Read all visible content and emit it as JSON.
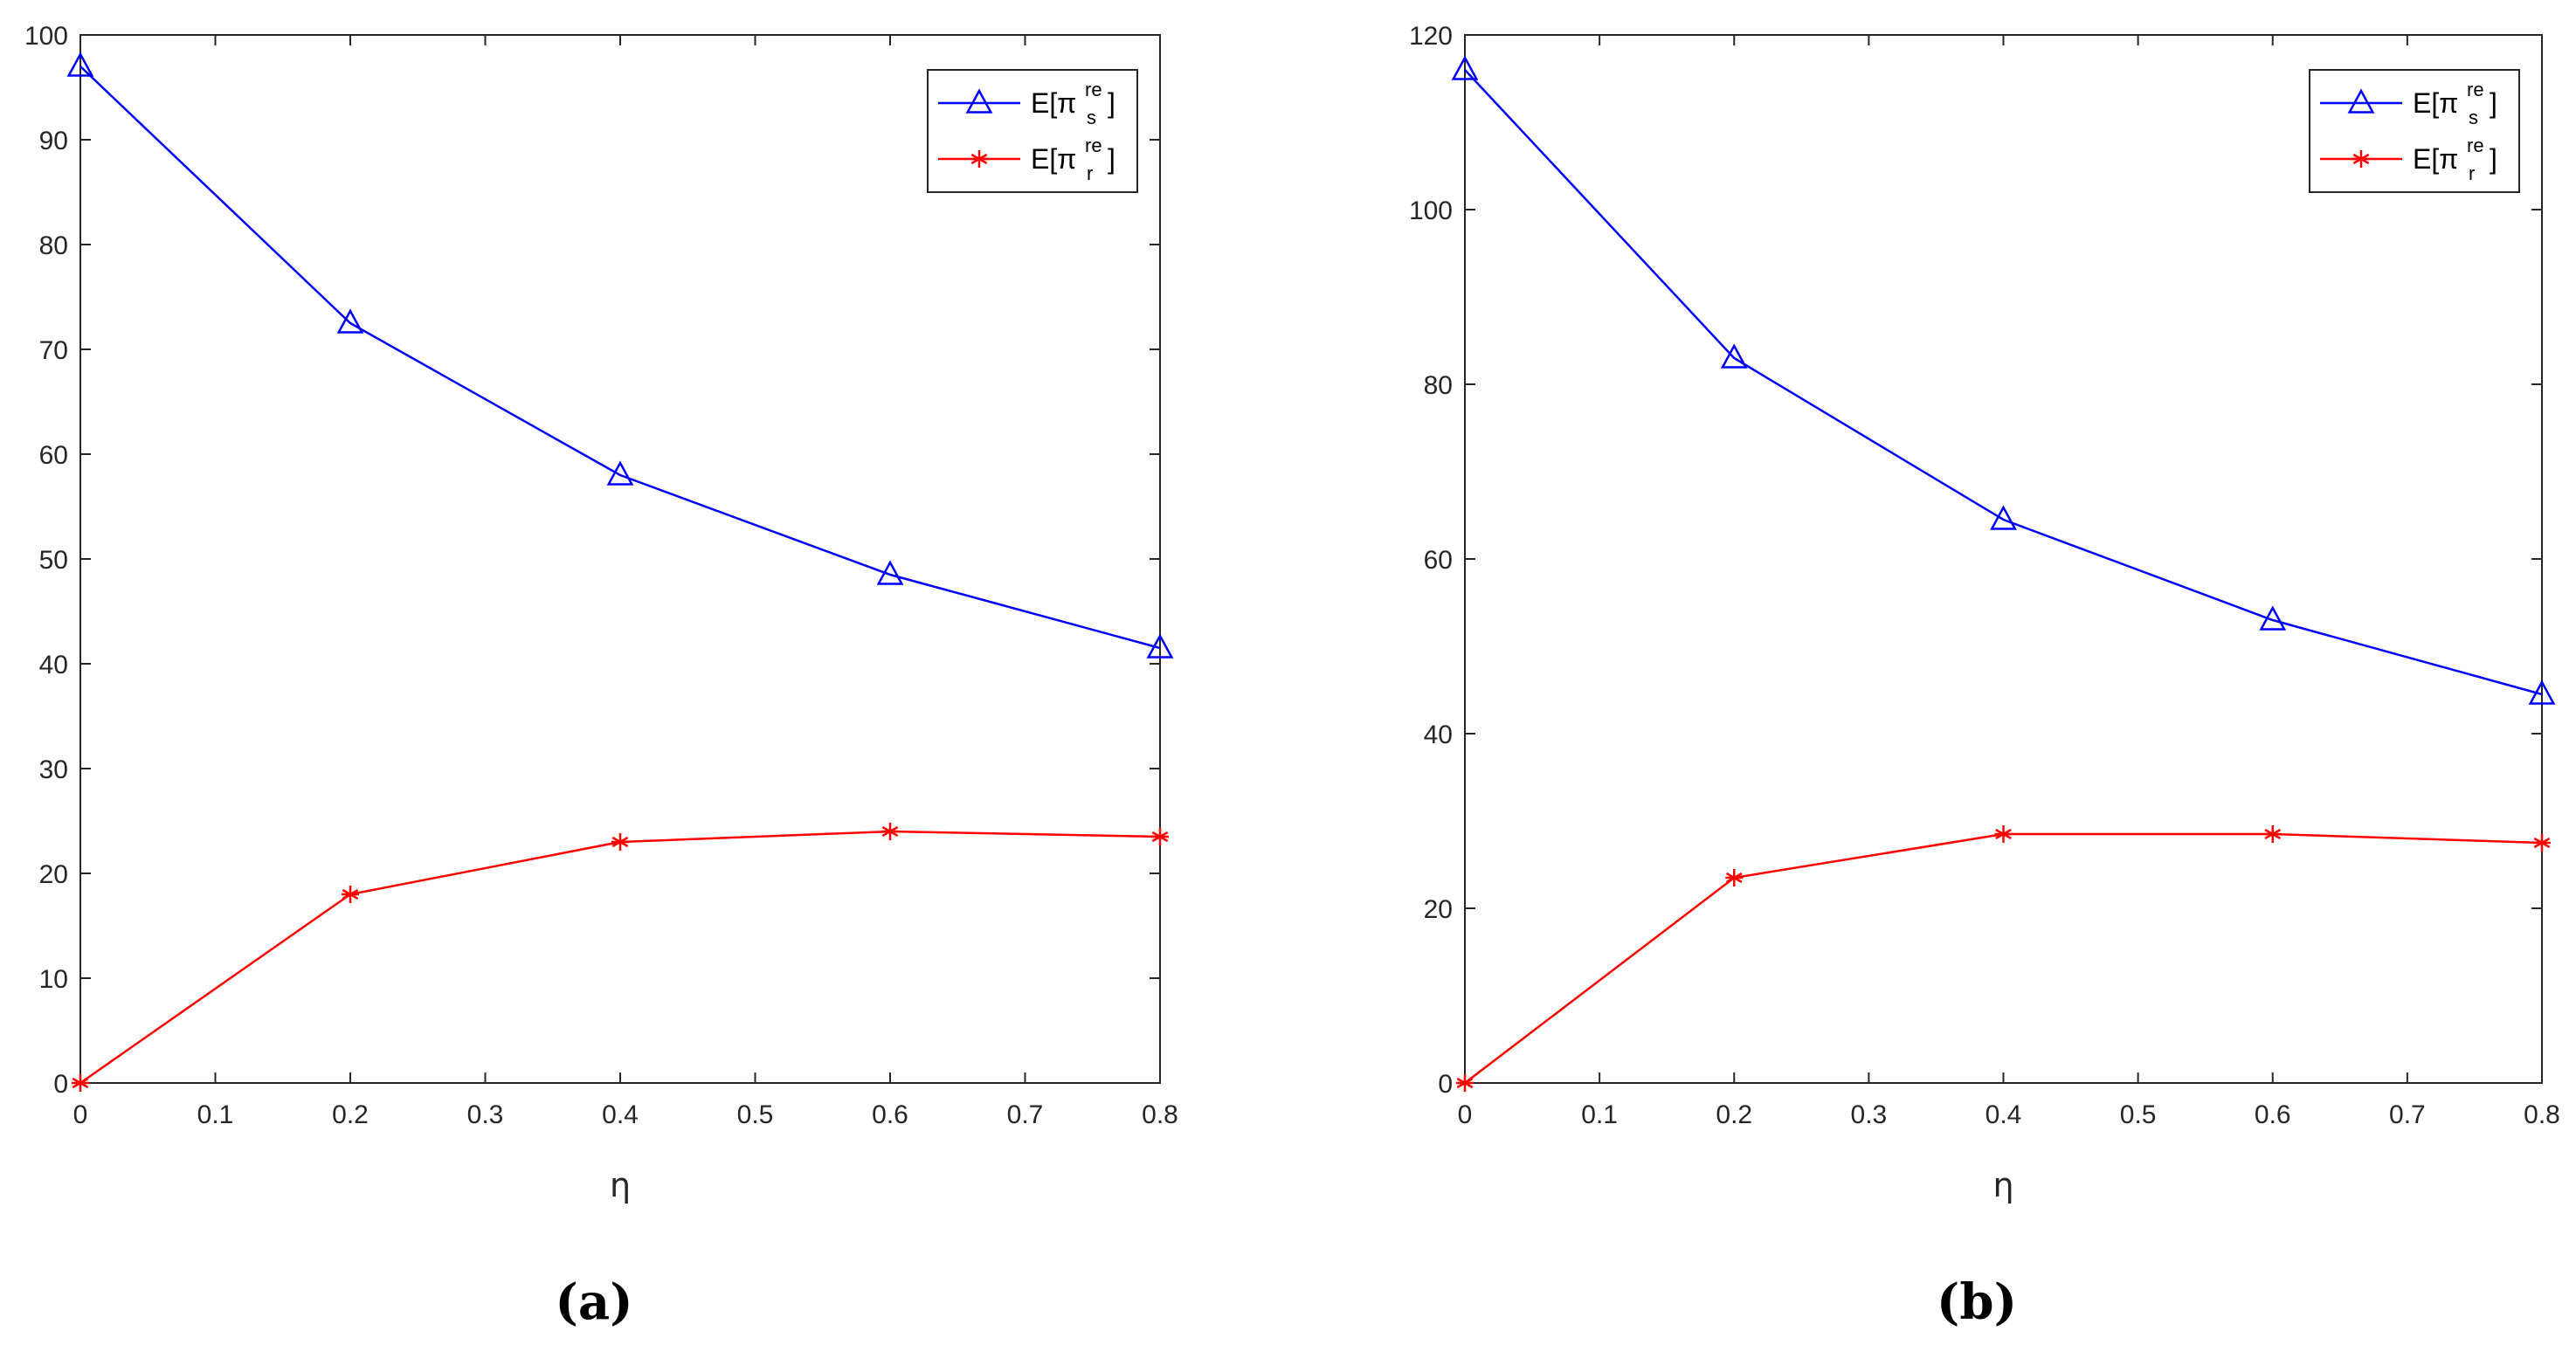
{
  "chart_data": [
    {
      "type": "line",
      "caption": "(a)",
      "xlabel": "η",
      "ylabel": "",
      "x": [
        0,
        0.2,
        0.4,
        0.6,
        0.8
      ],
      "xlim": [
        0,
        0.8
      ],
      "ylim": [
        0,
        100
      ],
      "xticks": [
        "0",
        "0.1",
        "0.2",
        "0.3",
        "0.4",
        "0.5",
        "0.6",
        "0.7",
        "0.8"
      ],
      "yticks": [
        "0",
        "10",
        "20",
        "30",
        "40",
        "50",
        "60",
        "70",
        "80",
        "90",
        "100"
      ],
      "grid": false,
      "legend_position": "top-right",
      "series": [
        {
          "name": "E[π_s^re]",
          "label_main": "E[π",
          "label_sup": "re",
          "label_sub": "s",
          "label_end": "]",
          "color": "#0000ff",
          "marker": "triangle",
          "values": [
            97,
            72.5,
            58,
            48.5,
            41.5
          ]
        },
        {
          "name": "E[π_r^re]",
          "label_main": "E[π",
          "label_sup": "re",
          "label_sub": "r",
          "label_end": "]",
          "color": "#ff0000",
          "marker": "asterisk",
          "values": [
            0,
            18,
            23,
            24,
            23.5
          ]
        }
      ]
    },
    {
      "type": "line",
      "caption": "(b)",
      "xlabel": "η",
      "ylabel": "",
      "x": [
        0,
        0.2,
        0.4,
        0.6,
        0.8
      ],
      "xlim": [
        0,
        0.8
      ],
      "ylim": [
        0,
        120
      ],
      "xticks": [
        "0",
        "0.1",
        "0.2",
        "0.3",
        "0.4",
        "0.5",
        "0.6",
        "0.7",
        "0.8"
      ],
      "yticks": [
        "0",
        "20",
        "40",
        "60",
        "80",
        "100",
        "120"
      ],
      "grid": false,
      "legend_position": "top-right",
      "series": [
        {
          "name": "E[π_s^re]",
          "label_main": "E[π",
          "label_sup": "re",
          "label_sub": "s",
          "label_end": "]",
          "color": "#0000ff",
          "marker": "triangle",
          "values": [
            116,
            83,
            64.5,
            53,
            44.5
          ]
        },
        {
          "name": "E[π_r^re]",
          "label_main": "E[π",
          "label_sup": "re",
          "label_sub": "r",
          "label_end": "]",
          "color": "#ff0000",
          "marker": "asterisk",
          "values": [
            0,
            23.5,
            28.5,
            28.5,
            27.5
          ]
        }
      ]
    }
  ]
}
